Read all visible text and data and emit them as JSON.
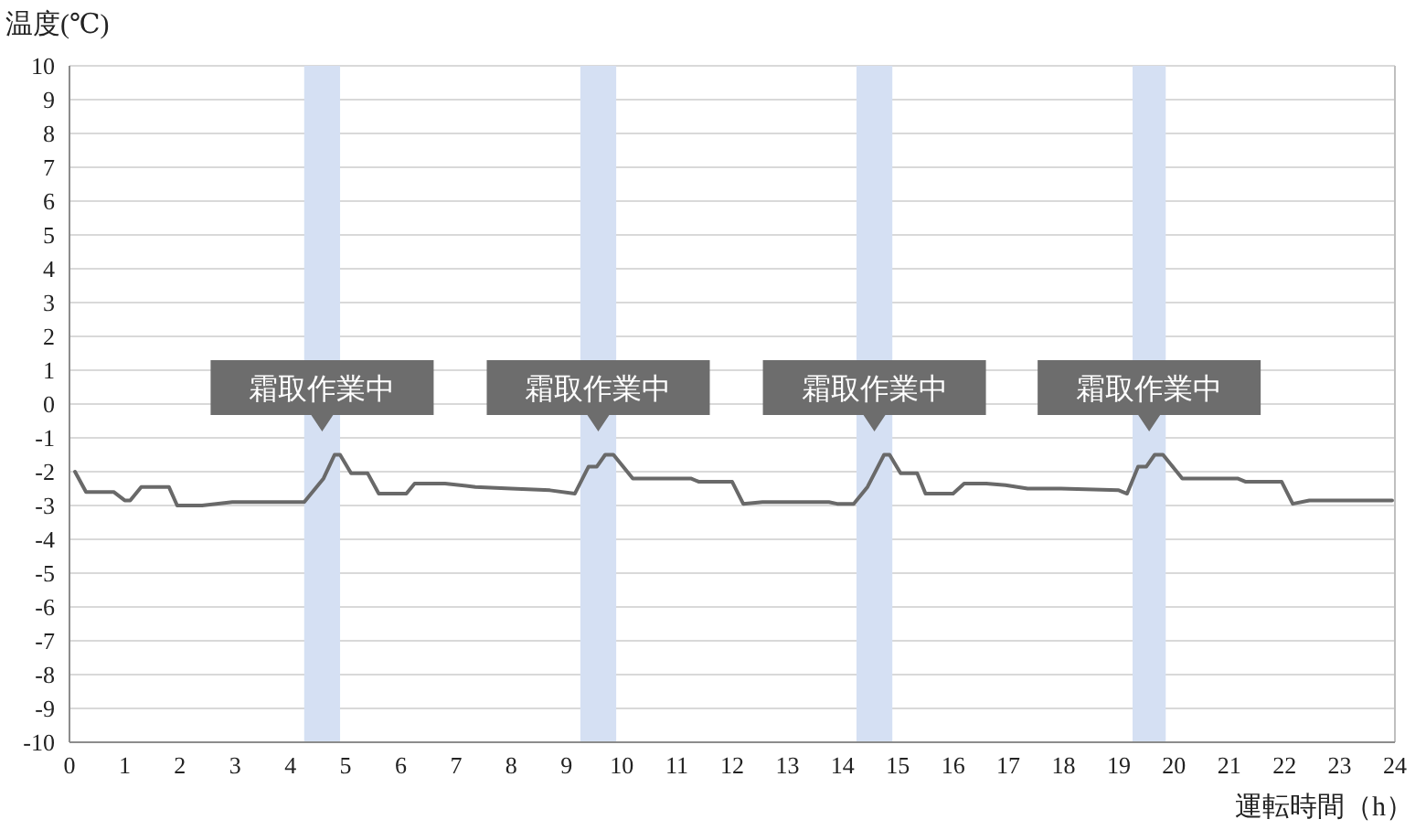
{
  "chart_data": {
    "type": "line",
    "ylabel": "温度(℃)",
    "xlabel": "運転時間（h）",
    "xlim": [
      0,
      24
    ],
    "ylim": [
      -10,
      10
    ],
    "xticks": [
      0,
      1,
      2,
      3,
      4,
      5,
      6,
      7,
      8,
      9,
      10,
      11,
      12,
      13,
      14,
      15,
      16,
      17,
      18,
      19,
      20,
      21,
      22,
      23,
      24
    ],
    "yticks": [
      -10,
      -9,
      -8,
      -7,
      -6,
      -5,
      -4,
      -3,
      -2,
      -1,
      0,
      1,
      2,
      3,
      4,
      5,
      6,
      7,
      8,
      9,
      10
    ],
    "grid": "y",
    "x": [
      0.1,
      0.3,
      0.8,
      1.0,
      1.1,
      1.3,
      1.8,
      1.95,
      2.4,
      2.95,
      4.25,
      4.6,
      4.8,
      4.9,
      5.1,
      5.4,
      5.6,
      6.1,
      6.25,
      6.8,
      7.35,
      8.0,
      8.7,
      9.15,
      9.4,
      9.55,
      9.7,
      9.85,
      10.2,
      11.25,
      11.4,
      12.0,
      12.2,
      12.55,
      13.75,
      13.9,
      14.2,
      14.45,
      14.75,
      14.85,
      15.05,
      15.35,
      15.5,
      16.0,
      16.2,
      16.6,
      16.95,
      17.35,
      17.95,
      19.0,
      19.15,
      19.35,
      19.5,
      19.65,
      19.8,
      20.15,
      21.15,
      21.3,
      21.95,
      22.15,
      22.45,
      23.95
    ],
    "series": [
      {
        "color": "#696969",
        "values": [
          -2.0,
          -2.6,
          -2.6,
          -2.85,
          -2.85,
          -2.45,
          -2.45,
          -3.0,
          -3.0,
          -2.9,
          -2.9,
          -2.2,
          -1.5,
          -1.5,
          -2.05,
          -2.05,
          -2.65,
          -2.65,
          -2.35,
          -2.35,
          -2.45,
          -2.5,
          -2.55,
          -2.65,
          -1.85,
          -1.85,
          -1.5,
          -1.5,
          -2.2,
          -2.2,
          -2.3,
          -2.3,
          -2.95,
          -2.9,
          -2.9,
          -2.95,
          -2.95,
          -2.45,
          -1.5,
          -1.5,
          -2.05,
          -2.05,
          -2.65,
          -2.65,
          -2.35,
          -2.35,
          -2.4,
          -2.5,
          -2.5,
          -2.55,
          -2.65,
          -1.85,
          -1.85,
          -1.5,
          -1.5,
          -2.2,
          -2.2,
          -2.3,
          -2.3,
          -2.95,
          -2.85,
          -2.85
        ]
      }
    ],
    "bands": [
      {
        "axis": "x",
        "from": 4.25,
        "to": 4.9,
        "label": "霜取作業中",
        "color": "#d5e0f3"
      },
      {
        "axis": "x",
        "from": 9.25,
        "to": 9.9,
        "label": "霜取作業中",
        "color": "#d5e0f3"
      },
      {
        "axis": "x",
        "from": 14.25,
        "to": 14.9,
        "label": "霜取作業中",
        "color": "#d5e0f3"
      },
      {
        "axis": "x",
        "from": 19.25,
        "to": 19.85,
        "label": "霜取作業中",
        "color": "#d5e0f3"
      }
    ]
  }
}
